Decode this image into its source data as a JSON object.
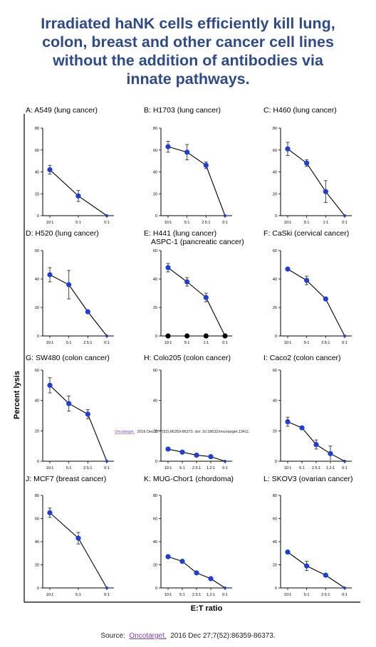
{
  "title_lines": [
    "Irradiated haNK cells efficiently kill lung,",
    "colon, breast and other cancer cell lines",
    "without the addition of antibodies via",
    "innate pathways."
  ],
  "ylabel": "Percent lysis",
  "xlabel": "E:T ratio",
  "overlay_citation": {
    "link": "Oncotarget.",
    "text": "2016 Dec 27;7(52):86359-86373. doi: 10.18632/oncotarget.13411."
  },
  "source": {
    "prefix": "Source:",
    "link": "Oncotarget.",
    "rest": "2016 Dec 27;7(52):86359-86373."
  },
  "colors": {
    "title": "#2e4a88",
    "marker": "#1f3fd4",
    "link": "#7a3fb0"
  },
  "chart_data": [
    {
      "type": "line",
      "title": "A: A549 (lung cancer)",
      "categories": [
        "10:1",
        "5:1",
        "0:1"
      ],
      "values": [
        42,
        18,
        0
      ],
      "errors": [
        4,
        5,
        0
      ],
      "ylim": [
        0,
        80
      ],
      "yticks": [
        0,
        20,
        40,
        60,
        80
      ]
    },
    {
      "type": "line",
      "title": "B: H1703 (lung cancer)",
      "categories": [
        "10:1",
        "5:1",
        "2.5:1",
        "0:1"
      ],
      "values": [
        63,
        58,
        46,
        0
      ],
      "errors": [
        5,
        7,
        3,
        0
      ],
      "ylim": [
        0,
        80
      ],
      "yticks": [
        0,
        20,
        40,
        60,
        80
      ]
    },
    {
      "type": "line",
      "title": "C: H460 (lung cancer)",
      "categories": [
        "10:1",
        "5:1",
        "1:1",
        "0:1"
      ],
      "values": [
        61,
        48,
        22,
        0
      ],
      "errors": [
        6,
        3,
        10,
        0
      ],
      "ylim": [
        0,
        80
      ],
      "yticks": [
        0,
        20,
        40,
        60,
        80
      ]
    },
    {
      "type": "line",
      "title": "D: H520 (lung cancer)",
      "categories": [
        "10:1",
        "5:1",
        "2.5:1",
        "0:1"
      ],
      "values": [
        43,
        36,
        17,
        0
      ],
      "errors": [
        5,
        10,
        1,
        0
      ],
      "ylim": [
        0,
        60
      ],
      "yticks": [
        0,
        20,
        40,
        60
      ]
    },
    {
      "type": "line",
      "title": "E: H441 (lung cancer)",
      "title2": "ASPC-1 (pancreatic cancer)",
      "categories": [
        "10:1",
        "5:1",
        "1:1",
        "0:1"
      ],
      "series": [
        {
          "values": [
            48,
            38,
            27,
            0
          ],
          "errors": [
            3,
            3,
            3,
            0
          ]
        },
        {
          "values": [
            0,
            0,
            0,
            0
          ],
          "errors": [
            0,
            0,
            0,
            0
          ],
          "color": "#000000"
        }
      ],
      "ylim": [
        0,
        60
      ],
      "yticks": [
        0,
        20,
        40,
        60
      ]
    },
    {
      "type": "line",
      "title": "F: CaSki (cervical cancer)",
      "categories": [
        "10:1",
        "5:1",
        "2.5:1",
        "0:1"
      ],
      "values": [
        47,
        39,
        26,
        0
      ],
      "errors": [
        1,
        3,
        1,
        0
      ],
      "ylim": [
        0,
        60
      ],
      "yticks": [
        0,
        20,
        40,
        60
      ]
    },
    {
      "type": "line",
      "title": "G: SW480 (colon cancer)",
      "categories": [
        "10:1",
        "5:1",
        "2.5:1",
        "0:1"
      ],
      "values": [
        50,
        38,
        31,
        0
      ],
      "errors": [
        5,
        5,
        3,
        0
      ],
      "ylim": [
        0,
        60
      ],
      "yticks": [
        0,
        20,
        40,
        60
      ]
    },
    {
      "type": "line",
      "title": "H: Colo205 (colon cancer)",
      "categories": [
        "10:1",
        "5:1",
        "2.5:1",
        "1.2:1",
        "0:1"
      ],
      "values": [
        8,
        6,
        4,
        3,
        0
      ],
      "errors": [
        1,
        1,
        1,
        1,
        0
      ],
      "ylim": [
        0,
        60
      ],
      "yticks": [
        0,
        20,
        40,
        60
      ]
    },
    {
      "type": "line",
      "title": "I: Caco2 (colon cancer)",
      "categories": [
        "10:1",
        "5:1",
        "2.5:1",
        "1.2:1",
        "0:1"
      ],
      "values": [
        26,
        22,
        11,
        5,
        0
      ],
      "errors": [
        3,
        1,
        3,
        5,
        0
      ],
      "ylim": [
        0,
        60
      ],
      "yticks": [
        0,
        20,
        40,
        60
      ]
    },
    {
      "type": "line",
      "title": "J: MCF7 (breast cancer)",
      "categories": [
        "10:1",
        "5:1",
        "0:1"
      ],
      "values": [
        65,
        43,
        0
      ],
      "errors": [
        4,
        5,
        0
      ],
      "ylim": [
        0,
        80
      ],
      "yticks": [
        0,
        20,
        40,
        60,
        80
      ]
    },
    {
      "type": "line",
      "title": "K: MUG-Chor1 (chordoma)",
      "categories": [
        "10:1",
        "5:1",
        "2.5:1",
        "1.2:1",
        "0:1"
      ],
      "values": [
        27,
        23,
        13,
        8,
        0
      ],
      "errors": [
        1,
        1,
        1,
        1,
        0
      ],
      "ylim": [
        0,
        80
      ],
      "yticks": [
        0,
        20,
        40,
        60,
        80
      ]
    },
    {
      "type": "line",
      "title": "L: SKOV3 (ovarian cancer)",
      "categories": [
        "10:1",
        "5:1",
        "2.5:1",
        "0:1"
      ],
      "values": [
        31,
        19,
        11,
        0
      ],
      "errors": [
        1,
        4,
        1,
        0
      ],
      "ylim": [
        0,
        80
      ],
      "yticks": [
        0,
        20,
        40,
        60,
        80
      ]
    }
  ]
}
